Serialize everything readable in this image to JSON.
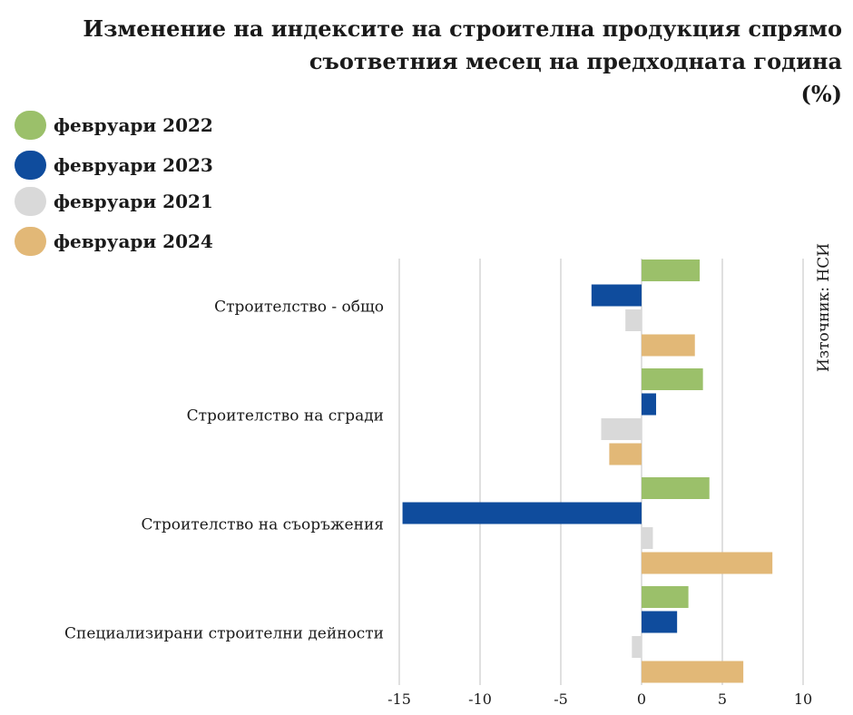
{
  "title_lines": [
    "Изменение на индексите на строителна продукция спрямо",
    "съответния месец на предходната година",
    "(%)"
  ],
  "source": "Източник: НСИ",
  "legend": [
    {
      "label": "февруари 2022",
      "color": "#9bc06a"
    },
    {
      "label": "февруари 2023",
      "color": "#0f4c9d"
    },
    {
      "label": "февруари 2021",
      "color": "#d9d9d9"
    },
    {
      "label": "февруари 2024",
      "color": "#e2b877"
    }
  ],
  "chart_data": {
    "type": "bar",
    "orientation": "horizontal",
    "title": "Изменение на индексите на строителна продукция спрямо съответния месец на предходната година (%)",
    "categories": [
      "Строителство - общо",
      "Строителство на сгради",
      "Строителство на съоръжения",
      "Специализирани строителни дейности"
    ],
    "series": [
      {
        "name": "февруари 2022",
        "color": "#9bc06a",
        "values": [
          3.6,
          3.8,
          4.2,
          2.9
        ]
      },
      {
        "name": "февруари 2023",
        "color": "#0f4c9d",
        "values": [
          -3.1,
          0.9,
          -14.8,
          2.2
        ]
      },
      {
        "name": "февруари 2021",
        "color": "#d9d9d9",
        "values": [
          -1.0,
          -2.5,
          0.7,
          -0.6
        ]
      },
      {
        "name": "февруари 2024",
        "color": "#e2b877",
        "values": [
          3.3,
          -2.0,
          8.1,
          6.3
        ]
      }
    ],
    "xlim": [
      -15,
      10
    ],
    "xticks": [
      -15,
      -10,
      -5,
      0,
      5,
      10
    ],
    "grid": true,
    "legend_position": "top-left"
  }
}
